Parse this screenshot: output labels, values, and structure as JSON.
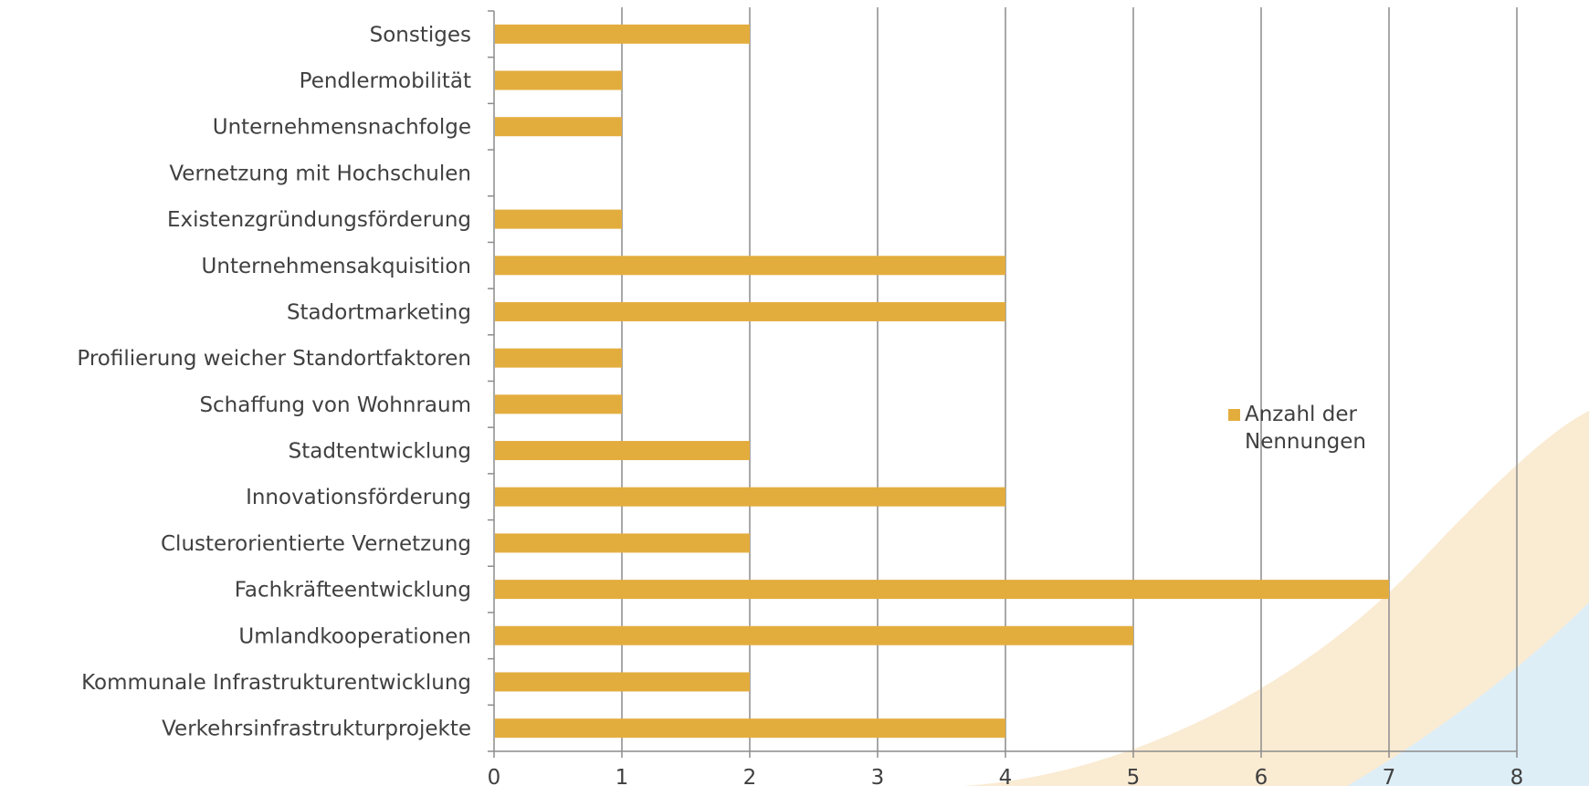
{
  "chart_data": {
    "type": "bar",
    "orientation": "horizontal",
    "categories": [
      "Sonstiges",
      "Pendlermobilität",
      "Unternehmensnachfolge",
      "Vernetzung mit Hochschulen",
      "Existenzgründungsförderung",
      "Unternehmensakquisition",
      "Stadortmarketing",
      "Profilierung weicher Standortfaktoren",
      "Schaffung von Wohnraum",
      "Stadtentwicklung",
      "Innovationsförderung",
      "Clusterorientierte Vernetzung",
      "Fachkräfteentwicklung",
      "Umlandkooperationen",
      "Kommunale Infrastrukturentwicklung",
      "Verkehrsinfrastrukturprojekte"
    ],
    "series": [
      {
        "name": "Anzahl der Nennungen",
        "values": [
          2,
          1,
          1,
          0,
          1,
          4,
          4,
          1,
          1,
          2,
          4,
          2,
          7,
          5,
          2,
          4
        ]
      }
    ],
    "xlim": [
      0,
      8
    ],
    "xticks": [
      "0",
      "1",
      "2",
      "3",
      "4",
      "5",
      "6",
      "7",
      "8"
    ],
    "grid": true,
    "legend_position": "right",
    "legend_lines": [
      "Anzahl der",
      "Nennungen"
    ],
    "colors": {
      "bar": "#E3AD3E",
      "grid": "#8C8C8C",
      "text": "#404040",
      "deco_peach": "#FAEBD3",
      "deco_blue": "#DDEEF7"
    }
  }
}
